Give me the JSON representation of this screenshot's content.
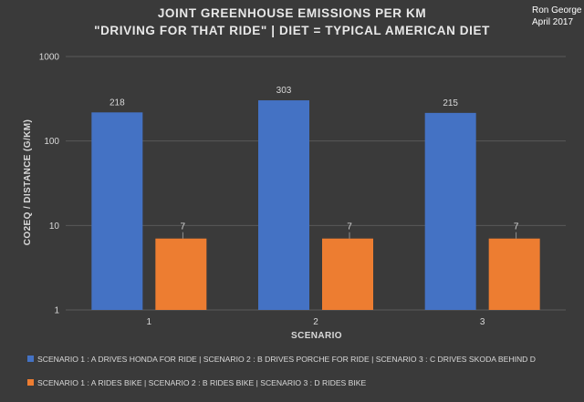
{
  "author": {
    "name": "Ron George",
    "date": "April 2017"
  },
  "chart_data": {
    "type": "bar",
    "title_lines": [
      "JOINT GREENHOUSE EMISSIONS PER KM",
      "\"DRIVING FOR THAT RIDE\"  |   DIET = TYPICAL AMERICAN DIET"
    ],
    "xlabel": "SCENARIO",
    "ylabel": "CO2EQ / DISTANCE  (G/KM)",
    "yscale": "log",
    "ylim": [
      1,
      1000
    ],
    "yticks": [
      "1",
      "10",
      "100",
      "1000"
    ],
    "categories": [
      "1",
      "2",
      "3"
    ],
    "series": [
      {
        "name": "SCENARIO 1 : A DRIVES HONDA FOR RIDE  |  SCENARIO 2 : B  DRIVES PORCHE FOR RIDE  |  SCENARIO 3 : C DRIVES SKODA BEHIND D",
        "color": "#4472c4",
        "values": [
          218,
          303,
          215
        ],
        "labels": [
          "218",
          "303",
          "215"
        ]
      },
      {
        "name": "SCENARIO 1 : A RIDES BIKE  |  SCENARIO 2 : B  RIDES BIKE  |  SCENARIO 3 : D RIDES BIKE",
        "color": "#ed7d31",
        "values": [
          7,
          7,
          7
        ],
        "labels": [
          "7",
          "7",
          "7"
        ]
      }
    ],
    "grid": true,
    "legend_position": "bottom"
  }
}
